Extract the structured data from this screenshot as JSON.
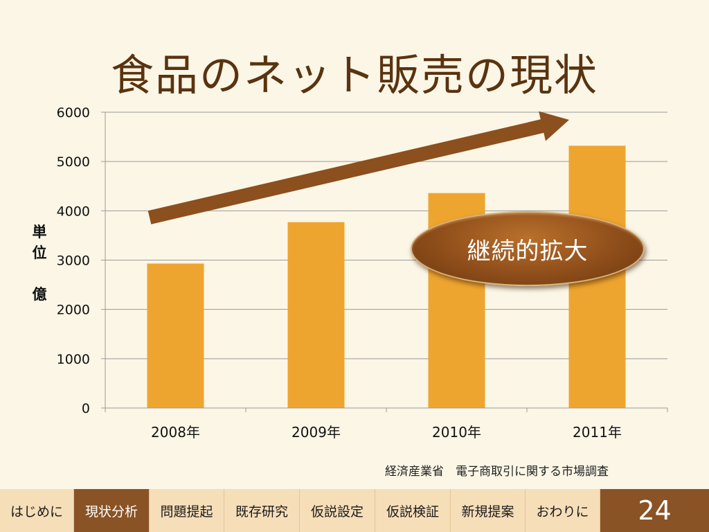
{
  "slide": {
    "title": "食品のネット販売の現状",
    "callout": "継続的拡大",
    "source": "経済産業省　電子商取引に関する市場調査",
    "page_number": "24"
  },
  "navbar": {
    "items": [
      {
        "label": "はじめに",
        "active": false
      },
      {
        "label": "現状分析",
        "active": true
      },
      {
        "label": "問題提起",
        "active": false
      },
      {
        "label": "既存研究",
        "active": false
      },
      {
        "label": "仮説設定",
        "active": false
      },
      {
        "label": "仮説検証",
        "active": false
      },
      {
        "label": "新規提案",
        "active": false
      },
      {
        "label": "おわりに",
        "active": false
      }
    ]
  },
  "chart_data": {
    "type": "bar",
    "categories": [
      "2008年",
      "2009年",
      "2010年",
      "2011年"
    ],
    "values": [
      2930,
      3770,
      4360,
      5320
    ],
    "ylabel_chars": [
      "単",
      "位",
      "",
      "億"
    ],
    "ylim": [
      0,
      6000
    ],
    "yticks": [
      "0",
      "1000",
      "2000",
      "3000",
      "4000",
      "5000",
      "6000"
    ],
    "grid": true,
    "legend": "none",
    "bar_color": "#eea52f",
    "arrow_color": "#8c4f1e"
  }
}
